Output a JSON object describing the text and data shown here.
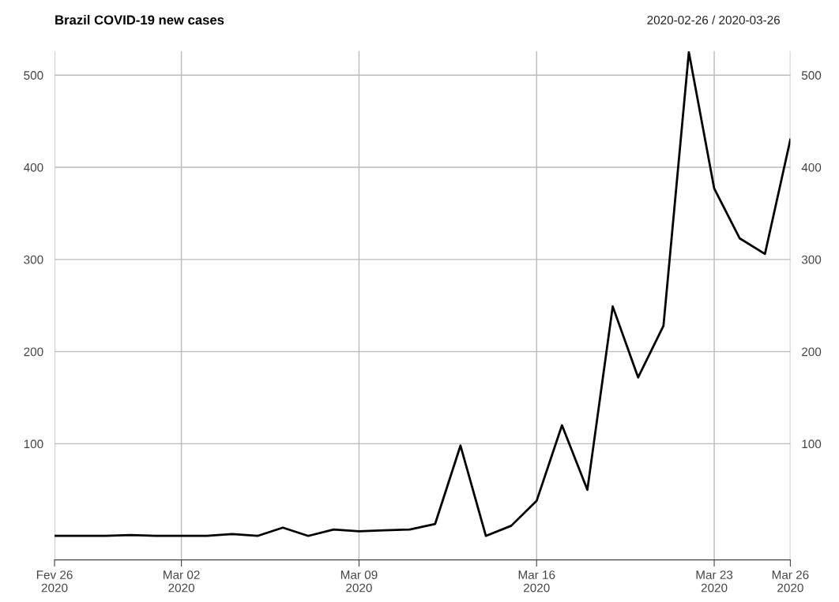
{
  "chart_data": {
    "type": "line",
    "title": "Brazil COVID-19 new cases",
    "subtitle": "2020-02-26 / 2020-03-26",
    "x": [
      "2020-02-26",
      "2020-02-27",
      "2020-02-28",
      "2020-02-29",
      "2020-03-01",
      "2020-03-02",
      "2020-03-03",
      "2020-03-04",
      "2020-03-05",
      "2020-03-06",
      "2020-03-07",
      "2020-03-08",
      "2020-03-09",
      "2020-03-10",
      "2020-03-11",
      "2020-03-12",
      "2020-03-13",
      "2020-03-14",
      "2020-03-15",
      "2020-03-16",
      "2020-03-17",
      "2020-03-18",
      "2020-03-19",
      "2020-03-20",
      "2020-03-21",
      "2020-03-22",
      "2020-03-23",
      "2020-03-24",
      "2020-03-25",
      "2020-03-26"
    ],
    "series": [
      {
        "color": "#000000",
        "values": [
          0,
          0,
          0,
          1,
          0,
          0,
          0,
          2,
          0,
          9,
          0,
          7,
          5,
          6,
          7,
          13,
          98,
          0,
          11,
          38,
          120,
          50,
          249,
          172,
          228,
          525,
          377,
          323,
          306,
          430
        ]
      }
    ],
    "xlim": [
      "2020-02-26",
      "2020-03-26"
    ],
    "xticks": [
      {
        "value": "2020-02-26",
        "label": "Fev 26\n2020"
      },
      {
        "value": "2020-03-02",
        "label": "Mar 02\n2020"
      },
      {
        "value": "2020-03-09",
        "label": "Mar 09\n2020"
      },
      {
        "value": "2020-03-16",
        "label": "Mar 16\n2020"
      },
      {
        "value": "2020-03-23",
        "label": "Mar 23\n2020"
      },
      {
        "value": "2020-03-26",
        "label": "Mar 26\n2020"
      }
    ],
    "ylim": [
      -26,
      526
    ],
    "yticks": [
      100,
      200,
      300,
      400,
      500
    ],
    "y2lim": [
      -26,
      526
    ],
    "y2ticks": [
      100,
      200,
      300,
      400,
      500
    ],
    "grid": true,
    "line_style": "solid",
    "marker": "none"
  }
}
